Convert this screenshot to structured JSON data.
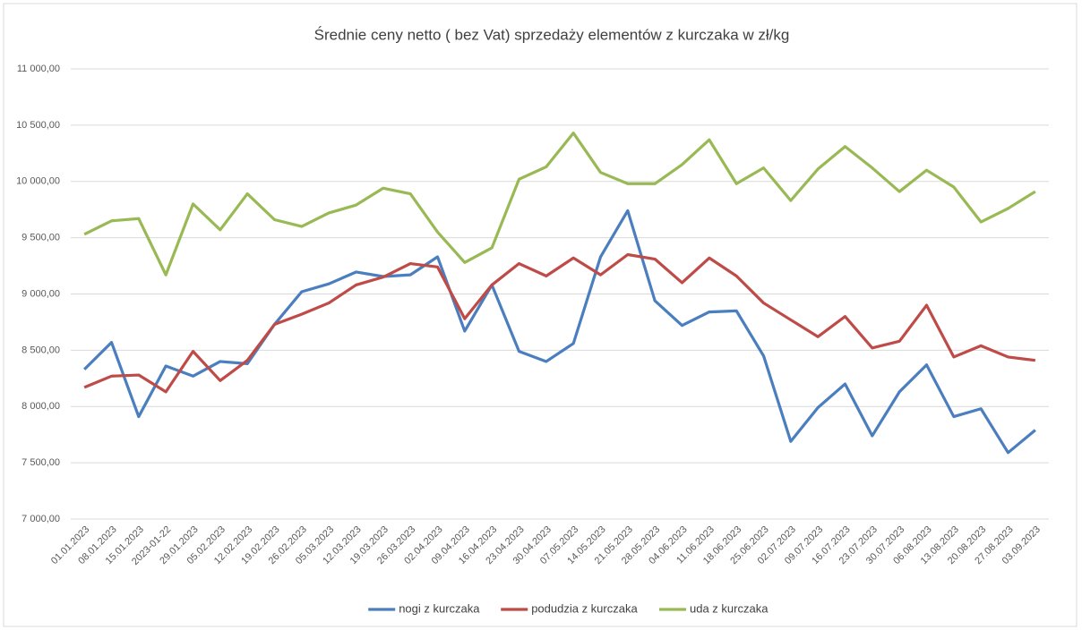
{
  "chart_data": {
    "type": "line",
    "title": "Średnie ceny netto ( bez Vat) sprzedaży elementów z kurczaka w zł/kg",
    "categories": [
      "01.01.2023",
      "08.01.2023",
      "15.01.2023",
      "2023-01-22",
      "29.01.2023",
      "05.02.2023",
      "12.02.2023",
      "19.02.2023",
      "26.02.2023",
      "05.03.2023",
      "12.03.2023",
      "19.03.2023",
      "26.03.2023",
      "02.04.2023",
      "09.04.2023",
      "16.04.2023",
      "23.04.2023",
      "30.04.2023",
      "07.05.2023",
      "14.05.2023",
      "21.05.2023",
      "28.05.2023",
      "04.06.2023",
      "11.06.2023",
      "18.06.2023",
      "25.06.2023",
      "02.07.2023",
      "09.07.2023",
      "16.07.2023",
      "23.07.2023",
      "30.07.2023",
      "06.08.2023",
      "13.08.2023",
      "20.08.2023",
      "27.08.2023",
      "03.09.2023"
    ],
    "series": [
      {
        "name": "nogi z kurczaka",
        "color": "#4a7ebf",
        "values": [
          8330,
          8570,
          7910,
          8360,
          8270,
          8400,
          8380,
          8730,
          9020,
          9090,
          9195,
          9155,
          9170,
          9330,
          8670,
          9080,
          8490,
          8400,
          8560,
          9330,
          9740,
          8940,
          8720,
          8840,
          8850,
          8450,
          7690,
          7990,
          8200,
          7740,
          8130,
          8370,
          7910,
          7980,
          7590,
          7790
        ]
      },
      {
        "name": "podudzia z kurczaka",
        "color": "#be4b48",
        "values": [
          8170,
          8270,
          8280,
          8130,
          8490,
          8230,
          8410,
          8730,
          8820,
          8920,
          9080,
          9150,
          9270,
          9240,
          8780,
          9080,
          9270,
          9160,
          9320,
          9170,
          9350,
          9310,
          9100,
          9320,
          9160,
          8920,
          8770,
          8620,
          8800,
          8520,
          8580,
          8900,
          8440,
          8540,
          8440,
          8410
        ]
      },
      {
        "name": "uda z kurczaka",
        "color": "#98b954",
        "values": [
          9530,
          9650,
          9670,
          9170,
          9800,
          9570,
          9890,
          9660,
          9600,
          9720,
          9790,
          9940,
          9890,
          9550,
          9280,
          9410,
          10020,
          10130,
          10430,
          10080,
          9980,
          9980,
          10150,
          10370,
          9980,
          10120,
          9830,
          10110,
          10310,
          10120,
          9910,
          10100,
          9950,
          9640,
          9760,
          9910
        ]
      }
    ],
    "ylim": [
      7000,
      11000
    ],
    "yticks": [
      {
        "value": 7000,
        "label": "7 000,00"
      },
      {
        "value": 7500,
        "label": "7 500,00"
      },
      {
        "value": 8000,
        "label": "8 000,00"
      },
      {
        "value": 8500,
        "label": "8 500,00"
      },
      {
        "value": 9000,
        "label": "9 000,00"
      },
      {
        "value": 9500,
        "label": "9 500,00"
      },
      {
        "value": 10000,
        "label": "10 000,00"
      },
      {
        "value": 10500,
        "label": "10 500,00"
      },
      {
        "value": 11000,
        "label": "11 000,00"
      }
    ],
    "grid": true,
    "legend": "bottom"
  }
}
